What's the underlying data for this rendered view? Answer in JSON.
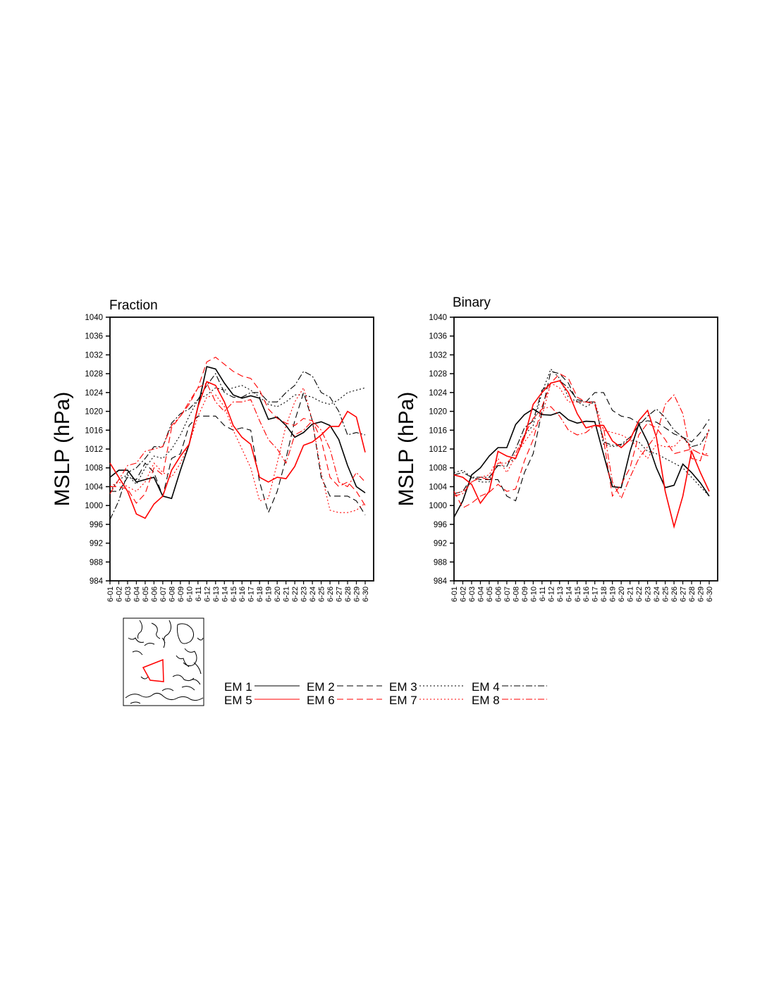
{
  "chart_data": [
    {
      "type": "line",
      "title": "Fraction",
      "ylabel": "MSLP (hPa)",
      "xlabel": "",
      "ylim": [
        984,
        1040
      ],
      "yticks": [
        984,
        988,
        992,
        996,
        1000,
        1004,
        1008,
        1012,
        1016,
        1020,
        1024,
        1028,
        1032,
        1036,
        1040
      ],
      "categories": [
        "6-01",
        "6-02",
        "6-03",
        "6-04",
        "6-05",
        "6-06",
        "6-07",
        "6-08",
        "6-09",
        "6-10",
        "6-11",
        "6-12",
        "6-13",
        "6-14",
        "6-15",
        "6-16",
        "6-17",
        "6-18",
        "6-19",
        "6-20",
        "6-21",
        "6-22",
        "6-23",
        "6-24",
        "6-25",
        "6-26",
        "6-27",
        "6-28",
        "6-29",
        "6-30"
      ],
      "series": [
        {
          "name": "EM 1",
          "color": "#000000",
          "style": "solid",
          "values": [
            1006,
            1007.5,
            1007.5,
            1005,
            1005.5,
            1006,
            1002,
            1001.5,
            1007.5,
            1013,
            1021,
            1029.5,
            1029,
            1026,
            1023.5,
            1022.8,
            1023.3,
            1022.8,
            1018.3,
            1018.8,
            1017,
            1014.5,
            1015.5,
            1017.3,
            1017.8,
            1017,
            1014,
            1008.5,
            1004,
            1002.7
          ]
        },
        {
          "name": "EM 2",
          "color": "#000000",
          "style": "dash",
          "values": [
            1003,
            1003,
            1006,
            1005.5,
            1009,
            1007,
            1002,
            1010,
            1011,
            1017,
            1019,
            1019,
            1019,
            1017,
            1016,
            1016.5,
            1016,
            1005,
            998.5,
            1003,
            1010,
            1018,
            1024,
            1018,
            1006,
            1002,
            1002,
            1002,
            1001,
            998
          ]
        },
        {
          "name": "EM 3",
          "color": "#000000",
          "style": "dot",
          "values": [
            1003,
            1005.5,
            1006.5,
            1004.5,
            1008,
            1010.5,
            1010,
            1012,
            1015,
            1019,
            1022.5,
            1023.5,
            1025,
            1024.5,
            1025,
            1025.5,
            1024.5,
            1023,
            1021.5,
            1021,
            1022,
            1023.5,
            1023.5,
            1023,
            1022,
            1021.5,
            1022.5,
            1024,
            1024.5,
            1025
          ]
        },
        {
          "name": "EM 4",
          "color": "#000000",
          "style": "dashdot",
          "values": [
            997,
            1001,
            1007,
            1008,
            1010,
            1012.5,
            1012.5,
            1017.5,
            1019.5,
            1020.5,
            1022.5,
            1025.5,
            1028,
            1024,
            1023,
            1023,
            1024,
            1024,
            1022,
            1022,
            1024,
            1025.5,
            1028.5,
            1027.5,
            1024,
            1023,
            1020,
            1015,
            1015.5,
            1015
          ]
        },
        {
          "name": "EM 5",
          "color": "#ff0000",
          "style": "solid",
          "values": [
            1009,
            1006,
            1003,
            998.2,
            997.3,
            1000.3,
            1002,
            1007.5,
            1010.5,
            1013,
            1021,
            1026.3,
            1025.5,
            1022,
            1017,
            1014.5,
            1013,
            1006,
            1005,
            1006,
            1005.7,
            1008.3,
            1012.8,
            1013.5,
            1015,
            1016.8,
            1016.8,
            1020,
            1018.8,
            1011.3
          ]
        },
        {
          "name": "EM 6",
          "color": "#ff0000",
          "style": "dash",
          "values": [
            1004,
            1004,
            1003.5,
            1000.5,
            1002.5,
            1008,
            1006.5,
            1016.5,
            1019,
            1021.5,
            1025,
            1030.5,
            1031.5,
            1030,
            1028.5,
            1027.5,
            1027,
            1024.5,
            1020.5,
            1018.5,
            1017.5,
            1017,
            1018.5,
            1018,
            1014,
            1006,
            1004,
            1005,
            1003,
            1000
          ]
        },
        {
          "name": "EM 7",
          "color": "#ff0000",
          "style": "dot",
          "values": [
            1004,
            1005,
            1004,
            1003,
            1005,
            1009,
            1007,
            1006,
            1009,
            1013,
            1019,
            1023,
            1023.5,
            1021,
            1016,
            1012,
            1008,
            1001,
            1001.5,
            1009,
            1017,
            1022,
            1025,
            1018,
            1007,
            999,
            998.5,
            998.5,
            999,
            1000.5
          ]
        },
        {
          "name": "EM 8",
          "color": "#ff0000",
          "style": "dashdot",
          "values": [
            1002.5,
            1005.5,
            1008.5,
            1009,
            1011.5,
            1012,
            1012.5,
            1017,
            1019,
            1022,
            1025,
            1026,
            1022,
            1020,
            1022,
            1022,
            1022.5,
            1018,
            1014,
            1012,
            1009,
            1015,
            1016,
            1018,
            1016,
            1012,
            1005,
            1004,
            1007,
            1005
          ]
        }
      ]
    },
    {
      "type": "line",
      "title": "Binary",
      "ylabel": "MSLP (hPa)",
      "xlabel": "",
      "ylim": [
        984,
        1040
      ],
      "yticks": [
        984,
        988,
        992,
        996,
        1000,
        1004,
        1008,
        1012,
        1016,
        1020,
        1024,
        1028,
        1032,
        1036,
        1040
      ],
      "categories": [
        "6-01",
        "6-02",
        "6-03",
        "6-04",
        "6-05",
        "6-06",
        "6-07",
        "6-08",
        "6-09",
        "6-10",
        "6-11",
        "6-12",
        "6-13",
        "6-14",
        "6-15",
        "6-16",
        "6-17",
        "6-18",
        "6-19",
        "6-20",
        "6-21",
        "6-22",
        "6-23",
        "6-24",
        "6-25",
        "6-26",
        "6-27",
        "6-28",
        "6-29",
        "6-30"
      ],
      "series": [
        {
          "name": "EM 1",
          "color": "#000000",
          "style": "solid",
          "values": [
            997.5,
            1001,
            1006.5,
            1008,
            1010.5,
            1012.3,
            1012.3,
            1017.2,
            1019.3,
            1020.5,
            1019.3,
            1019.2,
            1019.8,
            1018.2,
            1017.5,
            1017.9,
            1017.8,
            1010.8,
            1004,
            1003.8,
            1011.5,
            1017.3,
            1013.5,
            1008,
            1003.8,
            1004.3,
            1008.8,
            1007,
            1004.8,
            1002
          ]
        },
        {
          "name": "EM 2",
          "color": "#000000",
          "style": "dash",
          "values": [
            1002.5,
            1003,
            1006,
            1005.5,
            1005.5,
            1005.5,
            1002,
            1001,
            1007,
            1011,
            1020,
            1028.5,
            1028,
            1026,
            1022,
            1022,
            1024,
            1024,
            1020.2,
            1019,
            1018.6,
            1017.5,
            1018,
            1017.7,
            1016.5,
            1015.2,
            1014.5,
            1013.5,
            1015.5,
            1018.3
          ]
        },
        {
          "name": "EM 3",
          "color": "#000000",
          "style": "dot",
          "values": [
            1007,
            1007.5,
            1006,
            1005,
            1005,
            1009,
            1009,
            1010,
            1015,
            1017,
            1024,
            1029,
            1027,
            1023,
            1022,
            1021,
            1022,
            1013,
            1012.5,
            1012.8,
            1014,
            1013.5,
            1011.5,
            1011,
            1010,
            1009,
            1008,
            1006,
            1004,
            1002
          ]
        },
        {
          "name": "EM 4",
          "color": "#000000",
          "style": "dashdot",
          "values": [
            1006.5,
            1007,
            1006,
            1006,
            1006,
            1008.5,
            1008.3,
            1012,
            1016.5,
            1018,
            1024.5,
            1026,
            1026.5,
            1025,
            1022.5,
            1022,
            1022,
            1013.5,
            1012.8,
            1013,
            1014.5,
            1017,
            1019,
            1020.5,
            1018.7,
            1016,
            1014.5,
            1012.5,
            1013,
            1016
          ]
        },
        {
          "name": "EM 5",
          "color": "#ff0000",
          "style": "solid",
          "values": [
            1006.5,
            1006,
            1004.5,
            1000.5,
            1003,
            1011.5,
            1010.5,
            1010,
            1014.5,
            1021.5,
            1024,
            1026,
            1026.5,
            1024,
            1019.5,
            1016.5,
            1017,
            1017,
            1013.7,
            1012.3,
            1014,
            1018,
            1020.2,
            1014.5,
            1003,
            995.5,
            1002,
            1011.5,
            1007,
            1003
          ]
        },
        {
          "name": "EM 6",
          "color": "#ff0000",
          "style": "dash",
          "values": [
            1003,
            999.5,
            1000.5,
            1002,
            1002.8,
            1004.5,
            1003,
            1003.5,
            1009.5,
            1014,
            1021,
            1026,
            1028,
            1027,
            1023,
            1022,
            1021.5,
            1014,
            1002,
            1004.5,
            1008,
            1015,
            1017.5,
            1016.5,
            1014,
            1011,
            1011.5,
            1012,
            1011,
            1010.5
          ]
        },
        {
          "name": "EM 7",
          "color": "#ff0000",
          "style": "dot",
          "values": [
            1002.5,
            1003,
            1005,
            1006,
            1006.5,
            1010,
            1007,
            1010.5,
            1013.5,
            1016,
            1019,
            1026,
            1025,
            1022,
            1022,
            1022,
            1022,
            1016,
            1015.5,
            1015,
            1014,
            1012,
            1010,
            1013,
            1012.5,
            1012.5,
            1014.5,
            1012,
            1011,
            1011
          ]
        },
        {
          "name": "EM 8",
          "color": "#ff0000",
          "style": "dashdot",
          "values": [
            1002,
            1002.5,
            1005,
            1006,
            1005.5,
            1009,
            1009,
            1011,
            1015,
            1018.5,
            1020.5,
            1021,
            1019,
            1016,
            1015,
            1015.5,
            1017,
            1016.5,
            1005,
            1001.5,
            1006,
            1010,
            1012.5,
            1015,
            1021.5,
            1023.5,
            1019.5,
            1010,
            1009.5,
            1016.5
          ]
        }
      ]
    }
  ],
  "legend": {
    "placement": "bottom",
    "entries": [
      {
        "label": "EM 1",
        "color": "#000000",
        "style": "solid"
      },
      {
        "label": "EM 2",
        "color": "#000000",
        "style": "dash"
      },
      {
        "label": "EM 3",
        "color": "#000000",
        "style": "dot"
      },
      {
        "label": "EM 4",
        "color": "#000000",
        "style": "dashdot"
      },
      {
        "label": "EM 5",
        "color": "#ff0000",
        "style": "solid"
      },
      {
        "label": "EM 6",
        "color": "#ff0000",
        "style": "dash"
      },
      {
        "label": "EM 7",
        "color": "#ff0000",
        "style": "dot"
      },
      {
        "label": "EM 8",
        "color": "#ff0000",
        "style": "dashdot"
      }
    ]
  },
  "inset_map": {
    "region_color": "#ff0000"
  }
}
